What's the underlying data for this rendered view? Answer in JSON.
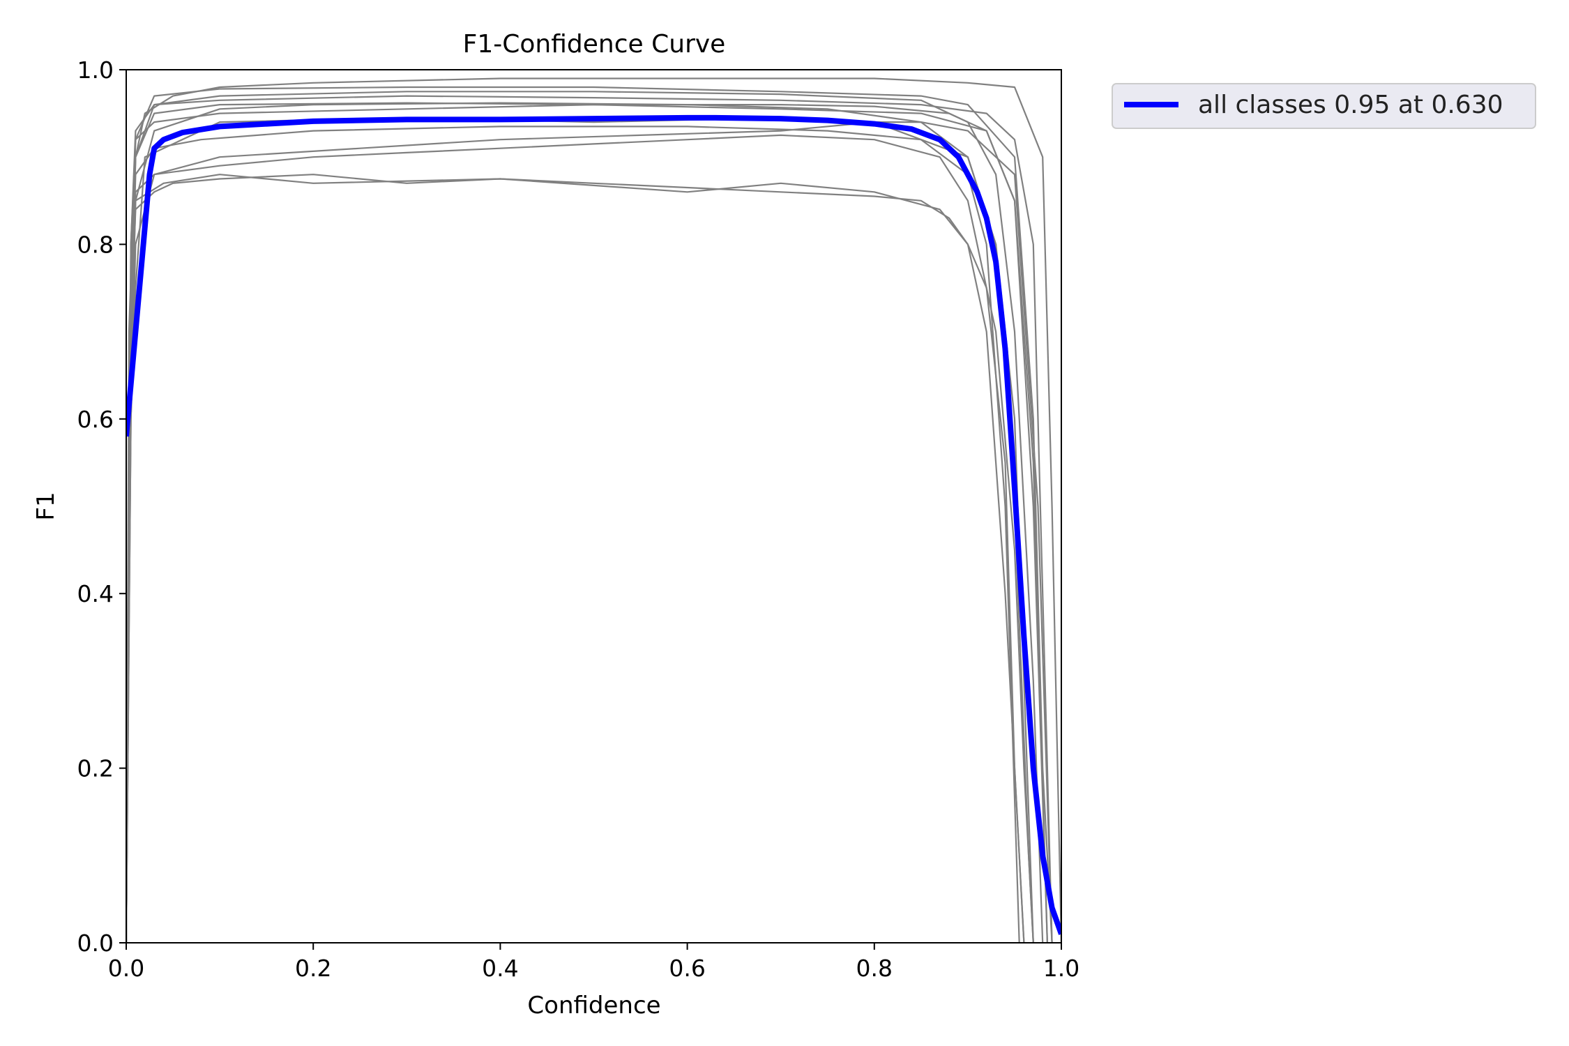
{
  "chart_data": {
    "type": "line",
    "title": "F1-Confidence Curve",
    "xlabel": "Confidence",
    "ylabel": "F1",
    "xlim": [
      0,
      1
    ],
    "ylim": [
      0,
      1
    ],
    "x_ticks": [
      "0.0",
      "0.2",
      "0.4",
      "0.6",
      "0.8",
      "1.0"
    ],
    "y_ticks": [
      "0.0",
      "0.2",
      "0.4",
      "0.6",
      "0.8",
      "1.0"
    ],
    "grid": false,
    "legend_position": "outside-top-right",
    "colors": {
      "class_curves": "#808080",
      "all_classes": "#0000ff"
    },
    "series": [
      {
        "name": "all classes 0.95 at 0.630",
        "style": "bold",
        "x": [
          0,
          0.01,
          0.02,
          0.025,
          0.03,
          0.04,
          0.06,
          0.1,
          0.2,
          0.3,
          0.4,
          0.5,
          0.6,
          0.63,
          0.7,
          0.75,
          0.8,
          0.84,
          0.87,
          0.89,
          0.91,
          0.92,
          0.93,
          0.94,
          0.95,
          0.96,
          0.97,
          0.98,
          0.99,
          1.0
        ],
        "y": [
          0.58,
          0.7,
          0.82,
          0.88,
          0.91,
          0.92,
          0.928,
          0.935,
          0.941,
          0.943,
          0.943,
          0.944,
          0.945,
          0.945,
          0.944,
          0.942,
          0.938,
          0.932,
          0.92,
          0.9,
          0.86,
          0.83,
          0.78,
          0.68,
          0.52,
          0.35,
          0.2,
          0.1,
          0.04,
          0.01
        ]
      },
      {
        "x": [
          0,
          0.003,
          0.01,
          0.03,
          0.1,
          0.3,
          0.5,
          0.7,
          0.85,
          0.9,
          0.93,
          0.95,
          0.97,
          0.98
        ],
        "y": [
          0.0,
          0.6,
          0.9,
          0.96,
          0.97,
          0.975,
          0.975,
          0.972,
          0.965,
          0.94,
          0.88,
          0.7,
          0.3,
          0.0
        ]
      },
      {
        "x": [
          0,
          0.003,
          0.01,
          0.03,
          0.1,
          0.3,
          0.5,
          0.7,
          0.85,
          0.9,
          0.95,
          0.97,
          0.98,
          0.99
        ],
        "y": [
          0.0,
          0.7,
          0.92,
          0.97,
          0.978,
          0.98,
          0.98,
          0.975,
          0.97,
          0.96,
          0.9,
          0.6,
          0.2,
          0.0
        ]
      },
      {
        "x": [
          0,
          0.005,
          0.01,
          0.03,
          0.1,
          0.2,
          0.4,
          0.6,
          0.75,
          0.85,
          0.9,
          0.93,
          0.95,
          0.965,
          0.97
        ],
        "y": [
          0.0,
          0.65,
          0.85,
          0.93,
          0.955,
          0.96,
          0.962,
          0.96,
          0.955,
          0.94,
          0.9,
          0.8,
          0.5,
          0.1,
          0.0
        ]
      },
      {
        "x": [
          0,
          0.005,
          0.01,
          0.03,
          0.05,
          0.1,
          0.2,
          0.3,
          0.4,
          0.5,
          0.6,
          0.7,
          0.8,
          0.85,
          0.88,
          0.9,
          0.92,
          0.94,
          0.95,
          0.96
        ],
        "y": [
          0.0,
          0.7,
          0.84,
          0.86,
          0.87,
          0.875,
          0.88,
          0.87,
          0.875,
          0.87,
          0.865,
          0.86,
          0.855,
          0.85,
          0.83,
          0.8,
          0.75,
          0.55,
          0.2,
          0.0
        ]
      },
      {
        "x": [
          0,
          0.005,
          0.01,
          0.03,
          0.1,
          0.2,
          0.3,
          0.4,
          0.5,
          0.6,
          0.7,
          0.8,
          0.87,
          0.9,
          0.93,
          0.95,
          0.96,
          0.97
        ],
        "y": [
          0.0,
          0.75,
          0.86,
          0.88,
          0.89,
          0.9,
          0.905,
          0.91,
          0.915,
          0.92,
          0.925,
          0.92,
          0.9,
          0.85,
          0.7,
          0.45,
          0.2,
          0.0
        ]
      },
      {
        "x": [
          0,
          0.005,
          0.01,
          0.03,
          0.1,
          0.3,
          0.5,
          0.7,
          0.8,
          0.88,
          0.92,
          0.95,
          0.97,
          0.985
        ],
        "y": [
          0.0,
          0.8,
          0.92,
          0.94,
          0.95,
          0.955,
          0.96,
          0.96,
          0.958,
          0.95,
          0.93,
          0.85,
          0.5,
          0.0
        ]
      },
      {
        "x": [
          0,
          0.005,
          0.01,
          0.03,
          0.1,
          0.25,
          0.4,
          0.55,
          0.7,
          0.8,
          0.85,
          0.9,
          0.95,
          0.975,
          0.99
        ],
        "y": [
          0.0,
          0.6,
          0.8,
          0.88,
          0.9,
          0.91,
          0.92,
          0.925,
          0.93,
          0.94,
          0.94,
          0.93,
          0.88,
          0.5,
          0.0
        ]
      },
      {
        "x": [
          0,
          0.005,
          0.01,
          0.04,
          0.1,
          0.2,
          0.4,
          0.6,
          0.7,
          0.8,
          0.87,
          0.9,
          0.92,
          0.94,
          0.96
        ],
        "y": [
          0.0,
          0.7,
          0.85,
          0.87,
          0.88,
          0.87,
          0.875,
          0.86,
          0.87,
          0.86,
          0.84,
          0.8,
          0.7,
          0.4,
          0.0
        ]
      },
      {
        "x": [
          0,
          0.005,
          0.01,
          0.03,
          0.1,
          0.3,
          0.5,
          0.7,
          0.85,
          0.92,
          0.95,
          0.97,
          0.98,
          0.99
        ],
        "y": [
          0.0,
          0.8,
          0.93,
          0.96,
          0.965,
          0.97,
          0.968,
          0.965,
          0.96,
          0.95,
          0.92,
          0.8,
          0.4,
          0.0
        ]
      },
      {
        "x": [
          0,
          0.005,
          0.01,
          0.02,
          0.1,
          0.3,
          0.5,
          0.7,
          0.8,
          0.9,
          0.93,
          0.95,
          0.96,
          0.97
        ],
        "y": [
          0.0,
          0.6,
          0.75,
          0.9,
          0.94,
          0.945,
          0.94,
          0.945,
          0.94,
          0.9,
          0.8,
          0.6,
          0.3,
          0.0
        ]
      },
      {
        "x": [
          0,
          0.005,
          0.01,
          0.02,
          0.05,
          0.1,
          0.2,
          0.4,
          0.6,
          0.8,
          0.9,
          0.95,
          0.98,
          0.99,
          1.0
        ],
        "y": [
          0.0,
          0.7,
          0.9,
          0.95,
          0.97,
          0.98,
          0.985,
          0.99,
          0.99,
          0.99,
          0.985,
          0.98,
          0.9,
          0.5,
          0.0
        ]
      },
      {
        "x": [
          0,
          0.005,
          0.01,
          0.03,
          0.08,
          0.2,
          0.4,
          0.6,
          0.75,
          0.85,
          0.9,
          0.92,
          0.94,
          0.955
        ],
        "y": [
          0.0,
          0.7,
          0.88,
          0.91,
          0.92,
          0.93,
          0.935,
          0.935,
          0.93,
          0.92,
          0.88,
          0.8,
          0.5,
          0.0
        ]
      },
      {
        "x": [
          0,
          0.005,
          0.01,
          0.03,
          0.1,
          0.3,
          0.5,
          0.7,
          0.85,
          0.92,
          0.95,
          0.97,
          0.985
        ],
        "y": [
          0.0,
          0.75,
          0.9,
          0.95,
          0.96,
          0.962,
          0.96,
          0.955,
          0.95,
          0.93,
          0.85,
          0.55,
          0.0
        ]
      }
    ]
  }
}
